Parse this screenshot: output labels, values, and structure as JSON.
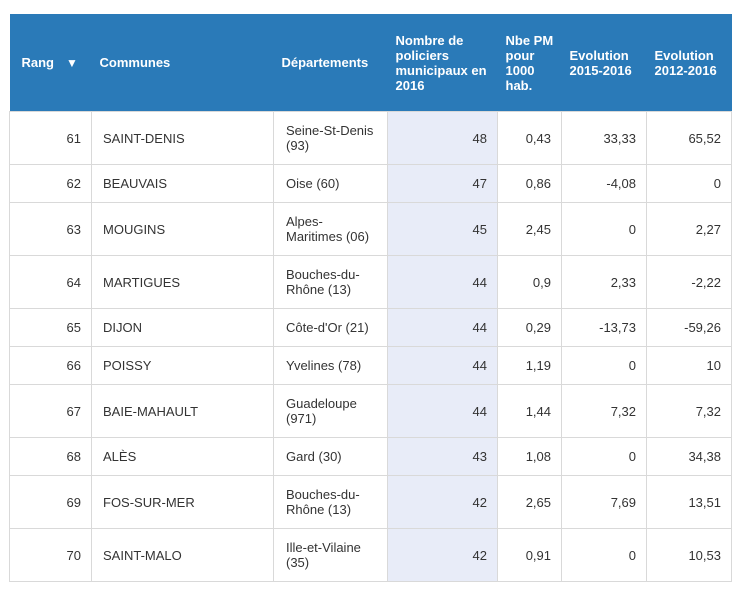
{
  "table": {
    "columns": [
      {
        "label": "Rang",
        "sort_icon": "sort-down-triangle-icon"
      },
      {
        "label": "Communes"
      },
      {
        "label": "Départements"
      },
      {
        "label": "Nombre de policiers municipaux en 2016"
      },
      {
        "label": "Nbe PM pour 1000 hab."
      },
      {
        "label": "Evolution 2015-2016"
      },
      {
        "label": "Evolution 2012-2016"
      }
    ],
    "sort_glyph": "▼",
    "rows": [
      {
        "rang": "61",
        "commune": "SAINT-DENIS",
        "departement": "Seine-St-Denis (93)",
        "policiers": "48",
        "pour_1000": "0,43",
        "evo_2015_2016": "33,33",
        "evo_2012_2016": "65,52"
      },
      {
        "rang": "62",
        "commune": "BEAUVAIS",
        "departement": "Oise (60)",
        "policiers": "47",
        "pour_1000": "0,86",
        "evo_2015_2016": "-4,08",
        "evo_2012_2016": "0"
      },
      {
        "rang": "63",
        "commune": "MOUGINS",
        "departement": "Alpes-Maritimes (06)",
        "policiers": "45",
        "pour_1000": "2,45",
        "evo_2015_2016": "0",
        "evo_2012_2016": "2,27"
      },
      {
        "rang": "64",
        "commune": "MARTIGUES",
        "departement": "Bouches-du-Rhône (13)",
        "policiers": "44",
        "pour_1000": "0,9",
        "evo_2015_2016": "2,33",
        "evo_2012_2016": "-2,22"
      },
      {
        "rang": "65",
        "commune": "DIJON",
        "departement": "Côte-d'Or (21)",
        "policiers": "44",
        "pour_1000": "0,29",
        "evo_2015_2016": "-13,73",
        "evo_2012_2016": "-59,26"
      },
      {
        "rang": "66",
        "commune": "POISSY",
        "departement": "Yvelines (78)",
        "policiers": "44",
        "pour_1000": "1,19",
        "evo_2015_2016": "0",
        "evo_2012_2016": "10"
      },
      {
        "rang": "67",
        "commune": "BAIE-MAHAULT",
        "departement": "Guadeloupe (971)",
        "policiers": "44",
        "pour_1000": "1,44",
        "evo_2015_2016": "7,32",
        "evo_2012_2016": "7,32"
      },
      {
        "rang": "68",
        "commune": "ALÈS",
        "departement": "Gard (30)",
        "policiers": "43",
        "pour_1000": "1,08",
        "evo_2015_2016": "0",
        "evo_2012_2016": "34,38"
      },
      {
        "rang": "69",
        "commune": "FOS-SUR-MER",
        "departement": "Bouches-du-Rhône (13)",
        "policiers": "42",
        "pour_1000": "2,65",
        "evo_2015_2016": "7,69",
        "evo_2012_2016": "13,51"
      },
      {
        "rang": "70",
        "commune": "SAINT-MALO",
        "departement": "Ille-et-Vilaine (35)",
        "policiers": "42",
        "pour_1000": "0,91",
        "evo_2015_2016": "0",
        "evo_2012_2016": "10,53"
      }
    ]
  },
  "colors": {
    "header_bg": "#2a7ab8",
    "header_text": "#ffffff",
    "sorted_column_bg": "#e8ecf8",
    "border": "#d9d9d9"
  }
}
